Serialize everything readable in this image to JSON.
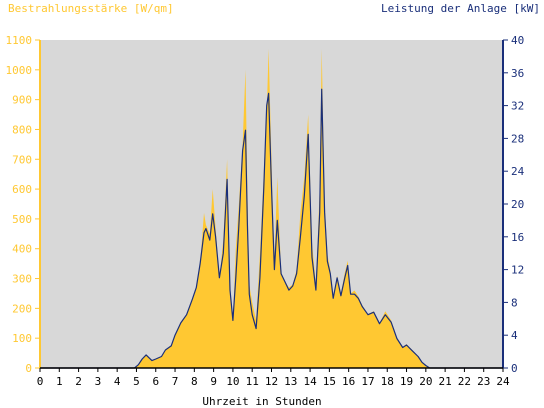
{
  "chart_data": {
    "type": "area",
    "left_axis_label": "Bestrahlungsstärke [W/qm]",
    "right_axis_label": "Leistung der Anlage [kW]",
    "xlabel": "Uhrzeit in Stunden",
    "x_ticks": [
      "0",
      "1",
      "2",
      "3",
      "4",
      "5",
      "6",
      "7",
      "8",
      "9",
      "10",
      "11",
      "12",
      "13",
      "14",
      "15",
      "16",
      "17",
      "18",
      "19",
      "20",
      "21",
      "22",
      "23",
      "24"
    ],
    "y_left_ticks": [
      "0",
      "100",
      "200",
      "300",
      "400",
      "500",
      "600",
      "700",
      "800",
      "900",
      "1000",
      "1100"
    ],
    "y_right_ticks": [
      "0",
      "4",
      "8",
      "12",
      "16",
      "20",
      "24",
      "28",
      "32",
      "36",
      "40"
    ],
    "xlim": [
      0,
      24
    ],
    "ylim_left": [
      0,
      1100
    ],
    "ylim_right": [
      0,
      40
    ],
    "grid": false,
    "colors": {
      "left_axis": "#ffc832",
      "right_axis": "#1a2f7a",
      "irradiance_fill": "#ffc832",
      "power_line": "#1a2f7a",
      "plot_background": "#d8d8d8"
    },
    "series": [
      {
        "axis": "left",
        "x": [
          0,
          4.9,
          5.1,
          5.3,
          5.5,
          5.8,
          6.0,
          6.3,
          6.5,
          6.8,
          7.0,
          7.3,
          7.6,
          7.9,
          8.1,
          8.3,
          8.5,
          8.6,
          8.8,
          8.95,
          9.1,
          9.3,
          9.5,
          9.7,
          9.85,
          10.0,
          10.15,
          10.3,
          10.5,
          10.65,
          10.75,
          10.85,
          11.0,
          11.2,
          11.4,
          11.6,
          11.75,
          11.85,
          12.0,
          12.15,
          12.3,
          12.5,
          12.7,
          12.9,
          13.1,
          13.3,
          13.5,
          13.7,
          13.9,
          14.1,
          14.3,
          14.5,
          14.6,
          14.75,
          14.9,
          15.05,
          15.2,
          15.4,
          15.6,
          15.8,
          15.95,
          16.1,
          16.3,
          16.5,
          16.7,
          17.0,
          17.3,
          17.6,
          17.9,
          18.2,
          18.5,
          18.8,
          19.0,
          19.3,
          19.6,
          19.8,
          20.0,
          20.2,
          20.5,
          24
        ],
        "y": [
          0,
          0,
          10,
          30,
          45,
          25,
          30,
          40,
          60,
          75,
          110,
          150,
          180,
          230,
          270,
          350,
          520,
          480,
          450,
          600,
          470,
          300,
          430,
          700,
          250,
          160,
          400,
          540,
          750,
          1000,
          600,
          280,
          220,
          160,
          380,
          660,
          850,
          1070,
          700,
          360,
          640,
          320,
          290,
          270,
          280,
          330,
          520,
          640,
          850,
          420,
          280,
          600,
          1070,
          560,
          380,
          330,
          240,
          310,
          250,
          320,
          360,
          250,
          260,
          240,
          210,
          180,
          190,
          150,
          190,
          160,
          100,
          70,
          80,
          60,
          40,
          20,
          10,
          0,
          0,
          0
        ]
      },
      {
        "axis": "right",
        "x": [
          0,
          4.9,
          5.1,
          5.3,
          5.5,
          5.8,
          6.0,
          6.3,
          6.5,
          6.8,
          7.0,
          7.3,
          7.6,
          7.9,
          8.1,
          8.3,
          8.5,
          8.6,
          8.8,
          8.95,
          9.1,
          9.3,
          9.5,
          9.7,
          9.85,
          10.0,
          10.15,
          10.3,
          10.5,
          10.65,
          10.75,
          10.85,
          11.0,
          11.2,
          11.4,
          11.6,
          11.75,
          11.85,
          12.0,
          12.15,
          12.3,
          12.5,
          12.7,
          12.9,
          13.1,
          13.3,
          13.5,
          13.7,
          13.9,
          14.1,
          14.3,
          14.5,
          14.6,
          14.75,
          14.9,
          15.05,
          15.2,
          15.4,
          15.6,
          15.8,
          15.95,
          16.1,
          16.3,
          16.5,
          16.7,
          17.0,
          17.3,
          17.6,
          17.9,
          18.2,
          18.5,
          18.8,
          19.0,
          19.3,
          19.6,
          19.8,
          20.0,
          20.2,
          20.5,
          24
        ],
        "y": [
          0,
          0,
          0.4,
          1.1,
          1.6,
          0.9,
          1.1,
          1.4,
          2.2,
          2.7,
          4.0,
          5.5,
          6.5,
          8.4,
          9.8,
          12.7,
          16.5,
          17.0,
          15.6,
          18.8,
          16.0,
          11.0,
          14.0,
          23.0,
          9.5,
          5.8,
          11.0,
          17.0,
          26.5,
          29.0,
          17.5,
          9.0,
          6.5,
          4.8,
          11.0,
          22.0,
          32.0,
          33.5,
          22.0,
          12.0,
          18.0,
          11.5,
          10.5,
          9.5,
          10.0,
          11.5,
          16.0,
          21.0,
          28.5,
          13.5,
          9.5,
          19.0,
          34.0,
          19.0,
          13.0,
          11.5,
          8.5,
          11.0,
          8.8,
          11.0,
          12.5,
          9.0,
          9.0,
          8.5,
          7.5,
          6.5,
          6.8,
          5.4,
          6.5,
          5.6,
          3.6,
          2.5,
          2.8,
          2.1,
          1.4,
          0.7,
          0.3,
          0,
          0,
          0
        ]
      }
    ]
  }
}
